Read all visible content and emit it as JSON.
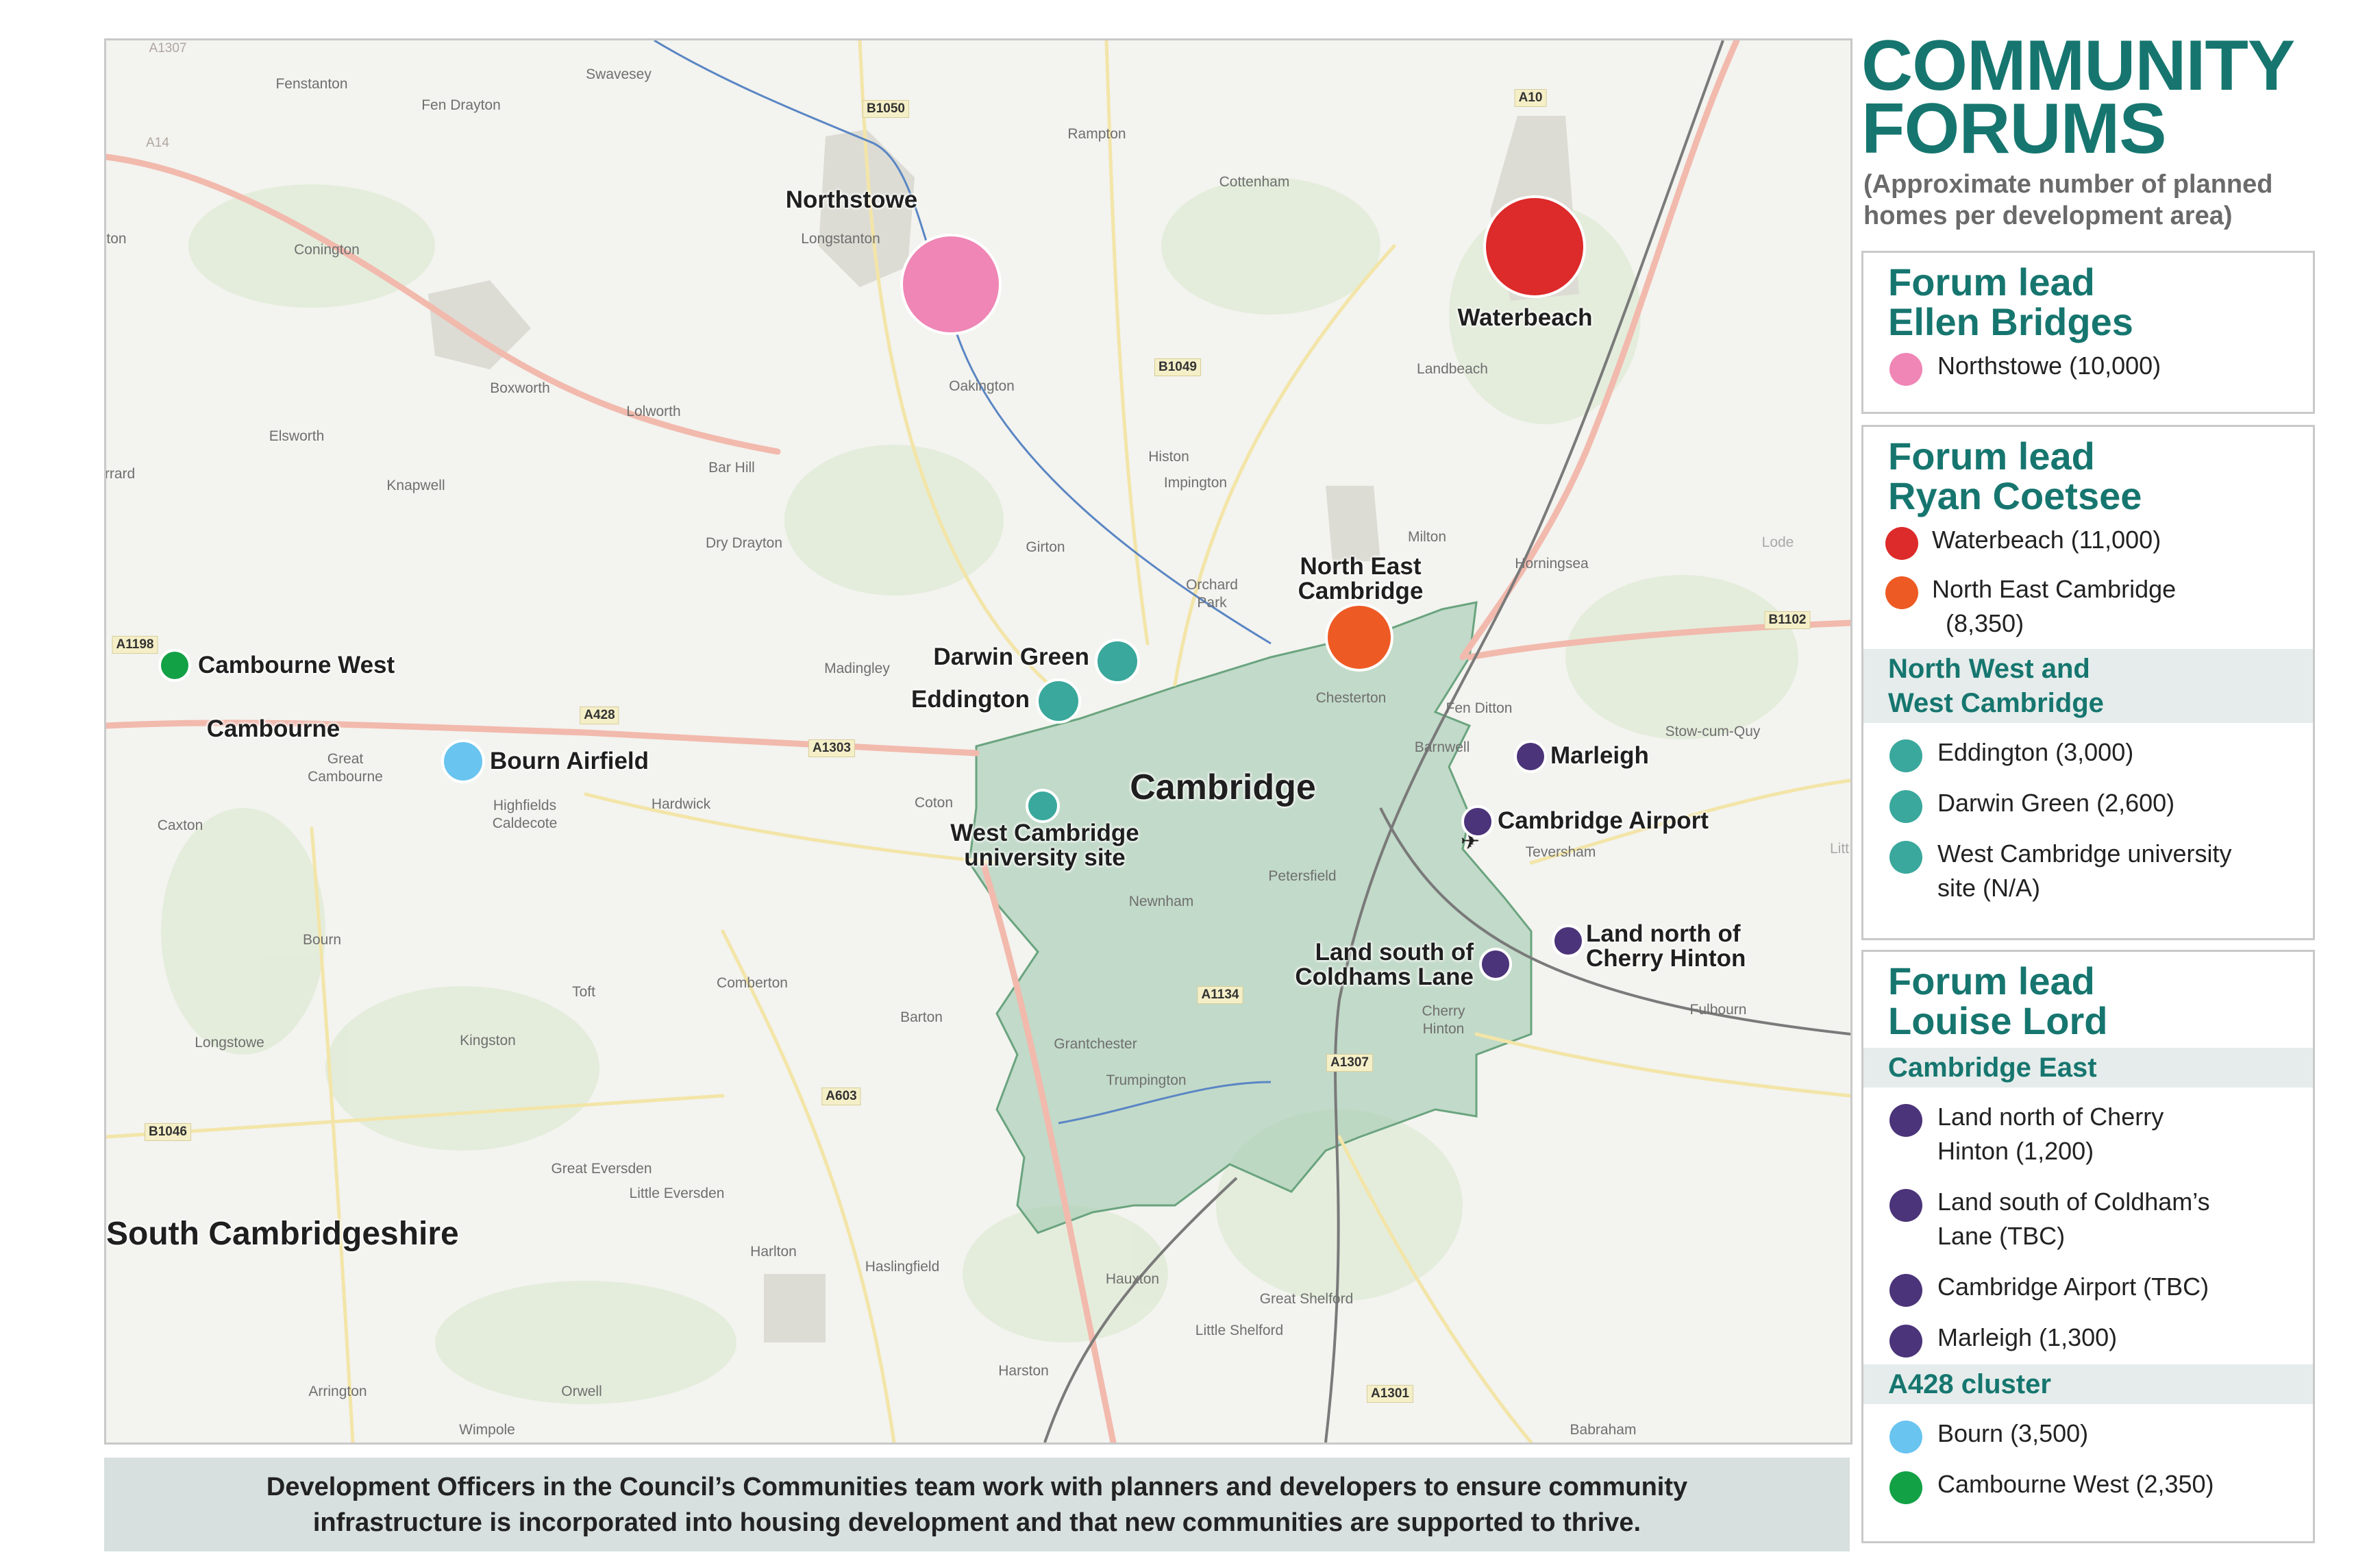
{
  "title": {
    "line1": "COMMUNITY",
    "line2": "FORUMS"
  },
  "subtitle": {
    "line1": "(Approximate number of planned",
    "line2": "homes per development area)"
  },
  "colors": {
    "accent": "#16766f",
    "pink": "#ef86b5",
    "red": "#dd2a2a",
    "orange": "#ee5a24",
    "teal": "#3aa89c",
    "purple": "#4b3479",
    "light_blue": "#69c4ef",
    "green": "#13a146",
    "city_area": "#a7cdb3"
  },
  "panels": [
    {
      "head_line1": "Forum lead",
      "head_line2": "Ellen Bridges",
      "entries": [
        {
          "color": "pink",
          "line1": "Northstowe (10,000)",
          "line2": ""
        }
      ]
    },
    {
      "head_line1": "Forum lead",
      "head_line2": "Ryan Coetsee",
      "entries": [
        {
          "color": "red",
          "line1": "Waterbeach (11,000)",
          "line2": ""
        },
        {
          "color": "orange",
          "line1": "North East Cambridge",
          "line2": "(8,350)"
        }
      ],
      "group": {
        "line1": "North West and",
        "line2": "West Cambridge"
      },
      "group_entries": [
        {
          "color": "teal",
          "line1": "Eddington (3,000)",
          "line2": ""
        },
        {
          "color": "teal",
          "line1": "Darwin Green (2,600)",
          "line2": ""
        },
        {
          "color": "teal",
          "line1": "West Cambridge university",
          "line2": "site (N/A)"
        }
      ]
    },
    {
      "head_line1": "Forum lead",
      "head_line2": "Louise Lord",
      "group": {
        "line1": "Cambridge East"
      },
      "group_entries": [
        {
          "color": "purple",
          "line1": "Land north of Cherry",
          "line2": "Hinton (1,200)"
        },
        {
          "color": "purple",
          "line1": "Land south of Coldham’s",
          "line2": "Lane (TBC)"
        },
        {
          "color": "purple",
          "line1": "Cambridge Airport (TBC)",
          "line2": ""
        },
        {
          "color": "purple",
          "line1": "Marleigh (1,300)",
          "line2": ""
        }
      ],
      "group2": {
        "line1": "A428 cluster"
      },
      "group2_entries": [
        {
          "color": "light_blue",
          "line1": "Bourn (3,500)",
          "line2": ""
        },
        {
          "color": "green",
          "line1": "Cambourne West (2,350)",
          "line2": ""
        }
      ]
    }
  ],
  "map": {
    "sites": [
      {
        "label_line1": "Northstowe",
        "label_line2": "",
        "color": "pink"
      },
      {
        "label_line1": "Waterbeach",
        "label_line2": "",
        "color": "red"
      },
      {
        "label_line1": "North East",
        "label_line2": "Cambridge",
        "color": "orange"
      },
      {
        "label_line1": "Darwin Green",
        "label_line2": "",
        "color": "teal"
      },
      {
        "label_line1": "Eddington",
        "label_line2": "",
        "color": "teal"
      },
      {
        "label_line1": "West Cambridge",
        "label_line2": "university site",
        "color": "teal"
      },
      {
        "label_line1": "Marleigh",
        "label_line2": "",
        "color": "purple"
      },
      {
        "label_line1": "Cambridge Airport",
        "label_line2": "",
        "color": "purple"
      },
      {
        "label_line1": "Land north of",
        "label_line2": "Cherry Hinton",
        "color": "purple"
      },
      {
        "label_line1": "Land south of",
        "label_line2": "Coldhams Lane",
        "color": "purple"
      },
      {
        "label_line1": "Cambourne West",
        "label_line2": "",
        "color": "green"
      },
      {
        "label_line1": "Bourn Airfield",
        "label_line2": "",
        "color": "light_blue"
      }
    ],
    "city_label": "Cambridge",
    "district_label": "South Cambridgeshire",
    "town_label": "Cambourne",
    "places": [
      "Fenstanton",
      "Swavesey",
      "Fen Drayton",
      "Rampton",
      "Cottenham",
      "Longstanton",
      "Conington",
      "Oakington",
      "Landbeach",
      "Boxworth",
      "Lolworth",
      "Elsworth",
      "Knapwell",
      "Bar Hill",
      "Histon",
      "Impington",
      "Dry Drayton",
      "Girton",
      "Milton",
      "Horningsea",
      "Orchard Park",
      "Madingley",
      "Chesterton",
      "Fen Ditton",
      "Barnwell",
      "Stow-cum-Quy",
      "Great Cambourne",
      "Highfields Caldecote",
      "Hardwick",
      "Coton",
      "Caxton",
      "Teversham",
      "Petersfield",
      "Newnham",
      "Bourn",
      "Comberton",
      "Toft",
      "Barton",
      "Fulbourn",
      "Cherry Hinton",
      "Longstowe",
      "Kingston",
      "Grantchester",
      "Trumpington",
      "Great Eversden",
      "Little Eversden",
      "Harlton",
      "Haslingfield",
      "Hauxton",
      "Great Shelford",
      "Little Shelford",
      "Harston",
      "Arrington",
      "Orwell",
      "Wimpole",
      "Babraham",
      "Lode",
      "Litt",
      "rrard",
      "ton"
    ],
    "roads": [
      "A1307",
      "A14",
      "B1050",
      "A10",
      "B1049",
      "A1198",
      "A428",
      "A1303",
      "B1102",
      "A1134",
      "A1307",
      "A603",
      "B1046",
      "A1301"
    ]
  },
  "footer": {
    "line1": "Development Officers in the Council’s Communities team work with planners and developers to ensure community",
    "line2": "infrastructure is incorporated into housing development and that new communities are supported to thrive."
  }
}
